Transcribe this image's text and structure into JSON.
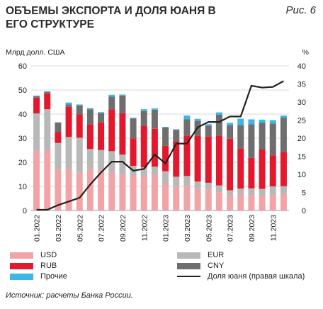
{
  "header": {
    "title": "ОБЪЕМЫ ЭКСПОРТА И ДОЛЯ ЮАНЯ В ЕГО СТРУКТУРЕ",
    "figure_label": "Рис. 6"
  },
  "source": "Источник: расчеты Банка России.",
  "colors": {
    "USD": "#f2a3a6",
    "EUR": "#b8b8b8",
    "RUB": "#e3182d",
    "CNY": "#6e6e6e",
    "other": "#3ab7e6",
    "line": "#222222"
  },
  "chart_data": {
    "type": "bar",
    "stacked": true,
    "left_axis": {
      "label": "Млрд долл. США",
      "ylim": [
        0,
        60
      ],
      "ticks": [
        0,
        10,
        20,
        30,
        40,
        50,
        60
      ]
    },
    "right_axis": {
      "label": "%",
      "ylim": [
        0,
        40
      ],
      "ticks": [
        0,
        5,
        10,
        15,
        20,
        25,
        30,
        35,
        40
      ]
    },
    "x_tick_labels": [
      "01.2022",
      "03.2022",
      "05.2022",
      "07.2022",
      "09.2022",
      "11.2022",
      "01.2023",
      "03.2023",
      "05.2023",
      "07.2023",
      "09.2023",
      "11.2023"
    ],
    "months": 24,
    "series": [
      {
        "name": "USD",
        "color_key": "USD",
        "values": [
          24.8,
          25.0,
          17.0,
          17.5,
          15.8,
          17.2,
          17.0,
          15.9,
          15.2,
          14.0,
          14.3,
          14.8,
          11.0,
          9.8,
          10.2,
          9.0,
          8.9,
          7.6,
          6.3,
          6.6,
          6.4,
          6.0,
          6.4,
          6.8
        ]
      },
      {
        "name": "EUR",
        "color_key": "EUR",
        "values": [
          15.5,
          17.0,
          11.0,
          13.0,
          14.4,
          8.3,
          8.1,
          8.7,
          8.0,
          4.5,
          3.6,
          3.4,
          5.3,
          4.2,
          4.1,
          3.0,
          2.6,
          2.8,
          2.1,
          2.5,
          2.8,
          3.0,
          3.6,
          3.3
        ]
      },
      {
        "name": "RUB",
        "color_key": "RUB",
        "values": [
          6.5,
          6.6,
          4.5,
          12.5,
          9.7,
          10.3,
          11.4,
          17.4,
          17.1,
          11.4,
          17.2,
          15.7,
          10.5,
          14.7,
          16.7,
          18.9,
          19.1,
          20.6,
          21.4,
          16.6,
          12.6,
          16.3,
          12.9,
          14.2
        ]
      },
      {
        "name": "CNY",
        "color_key": "CNY",
        "values": [
          0.6,
          0.6,
          4.0,
          1.0,
          3.7,
          6.2,
          4.0,
          5.2,
          7.4,
          8.3,
          6.2,
          7.9,
          7.6,
          4.8,
          6.8,
          6.3,
          4.6,
          8.7,
          5.6,
          9.8,
          14.0,
          11.2,
          13.2,
          14.2
        ]
      },
      {
        "name": "Прочие",
        "color_key": "other",
        "values": [
          0.3,
          0.3,
          0.1,
          0.8,
          0.4,
          0.5,
          0.3,
          0.8,
          0.4,
          0.3,
          0.7,
          0.6,
          0.3,
          0.2,
          1.6,
          0.8,
          0.6,
          1.0,
          1.0,
          2.6,
          2.0,
          1.2,
          1.4,
          0.9
        ]
      }
    ],
    "line_series": {
      "name": "Доля юаня (правая шкала)",
      "axis": "right",
      "values": [
        0.2,
        0.2,
        1.5,
        2.5,
        3.5,
        7.2,
        10.5,
        13.5,
        13.5,
        11.0,
        11.5,
        15.5,
        13.0,
        18.5,
        18.5,
        23.0,
        24.5,
        24.5,
        26.0,
        26.0,
        34.5,
        34.0,
        34.2,
        35.8
      ]
    }
  },
  "legend": {
    "usd": "USD",
    "eur": "EUR",
    "rub": "RUB",
    "cny": "CNY",
    "other": "Прочие",
    "line": "Доля юаня (правая шкала)"
  }
}
